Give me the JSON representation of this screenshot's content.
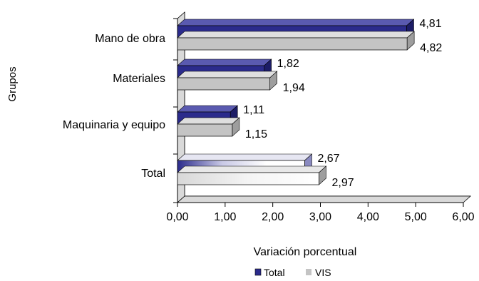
{
  "chart_data": {
    "type": "bar",
    "orientation": "horizontal",
    "three_d": true,
    "categories": [
      "Mano de obra",
      "Materiales",
      "Maquinaria y equipo",
      "Total"
    ],
    "series": [
      {
        "name": "Total",
        "values": [
          4.81,
          1.82,
          1.11,
          2.67
        ],
        "labels": [
          "4,81",
          "1,82",
          "1,11",
          "2,67"
        ]
      },
      {
        "name": "VIS",
        "values": [
          4.82,
          1.94,
          1.15,
          2.97
        ],
        "labels": [
          "4,82",
          "1,94",
          "1,15",
          "2,97"
        ]
      }
    ],
    "xlabel": "Variación porcentual",
    "ylabel": "Grupos",
    "xlim": [
      0,
      6
    ],
    "x_ticks": [
      "0,00",
      "1,00",
      "2,00",
      "3,00",
      "4,00",
      "5,00",
      "6,00"
    ],
    "grid": false,
    "legend": "bottom",
    "colors": {
      "Total": "#2b2b8c",
      "VIS": "#c4c4c4",
      "highlight_total": "#ffffff"
    }
  }
}
